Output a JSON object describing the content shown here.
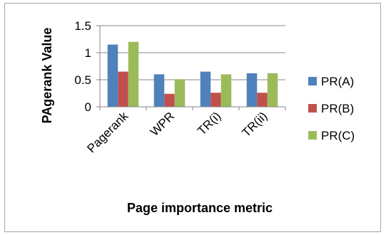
{
  "chart_data": {
    "type": "bar",
    "title": "",
    "xlabel": "Page importance metric",
    "ylabel": "PAgerank Value",
    "categories": [
      "Pagerank",
      "WPR",
      "TR(i)",
      "TR(ii)"
    ],
    "series": [
      {
        "name": "PR(A)",
        "color": "#4f81bd",
        "values": [
          1.15,
          0.6,
          0.65,
          0.62
        ]
      },
      {
        "name": "PR(B)",
        "color": "#c0504d",
        "values": [
          0.65,
          0.24,
          0.26,
          0.26
        ]
      },
      {
        "name": "PR(C)",
        "color": "#9bbb59",
        "values": [
          1.2,
          0.51,
          0.6,
          0.62
        ]
      }
    ],
    "yticks": [
      "0",
      "0.5",
      "1",
      "1.5"
    ],
    "ylim": [
      0,
      1.5
    ],
    "grid": true,
    "legend": "right"
  }
}
